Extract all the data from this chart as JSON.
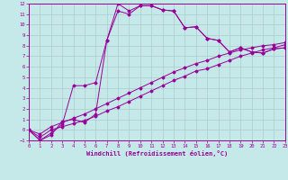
{
  "xlabel": "Windchill (Refroidissement éolien,°C)",
  "xlim": [
    0,
    23
  ],
  "ylim": [
    -1,
    12
  ],
  "xticks": [
    0,
    1,
    2,
    3,
    4,
    5,
    6,
    7,
    8,
    9,
    10,
    11,
    12,
    13,
    14,
    15,
    16,
    17,
    18,
    19,
    20,
    21,
    22,
    23
  ],
  "yticks": [
    -1,
    0,
    1,
    2,
    3,
    4,
    5,
    6,
    7,
    8,
    9,
    10,
    11,
    12
  ],
  "bg_color": "#c5e8e8",
  "line_color": "#990099",
  "grid_color": "#aacccc",
  "curve1_x": [
    0,
    1,
    2,
    3,
    4,
    5,
    6,
    7,
    8,
    9,
    10,
    11,
    12,
    13,
    14,
    15,
    16,
    17,
    18,
    19,
    20,
    21,
    22,
    23
  ],
  "curve1_y": [
    0.0,
    -1.0,
    -0.5,
    0.8,
    1.0,
    0.7,
    1.5,
    8.5,
    12.0,
    11.3,
    11.8,
    11.8,
    11.4,
    11.3,
    9.7,
    9.8,
    8.7,
    8.5,
    7.4,
    7.8,
    7.4,
    7.3,
    7.7,
    7.8
  ],
  "curve2_x": [
    0,
    1,
    2,
    3,
    4,
    5,
    6,
    7,
    8,
    9,
    10,
    11,
    12,
    13,
    14,
    15,
    16,
    17,
    18,
    19,
    20,
    21,
    22,
    23
  ],
  "curve2_y": [
    0.0,
    -1.0,
    -0.3,
    0.5,
    4.2,
    4.2,
    4.5,
    8.5,
    11.3,
    11.0,
    11.8,
    11.8,
    11.4,
    11.3,
    9.7,
    9.8,
    8.7,
    8.5,
    7.4,
    7.8,
    7.4,
    7.3,
    7.7,
    7.8
  ],
  "line3_x": [
    0,
    1,
    2,
    3,
    4,
    5,
    6,
    7,
    8,
    9,
    10,
    11,
    12,
    13,
    14,
    15,
    16,
    17,
    18,
    19,
    20,
    21,
    22,
    23
  ],
  "line3_y": [
    0.0,
    -0.7,
    0.0,
    0.3,
    0.6,
    0.9,
    1.3,
    1.8,
    2.2,
    2.7,
    3.2,
    3.7,
    4.2,
    4.7,
    5.1,
    5.6,
    5.8,
    6.2,
    6.6,
    7.0,
    7.3,
    7.6,
    7.8,
    8.1
  ],
  "line4_x": [
    0,
    1,
    2,
    3,
    4,
    5,
    6,
    7,
    8,
    9,
    10,
    11,
    12,
    13,
    14,
    15,
    16,
    17,
    18,
    19,
    20,
    21,
    22,
    23
  ],
  "line4_y": [
    0.0,
    -0.4,
    0.3,
    0.7,
    1.1,
    1.5,
    2.0,
    2.5,
    3.0,
    3.5,
    4.0,
    4.5,
    5.0,
    5.5,
    5.9,
    6.3,
    6.6,
    7.0,
    7.3,
    7.6,
    7.8,
    8.0,
    8.1,
    8.3
  ]
}
